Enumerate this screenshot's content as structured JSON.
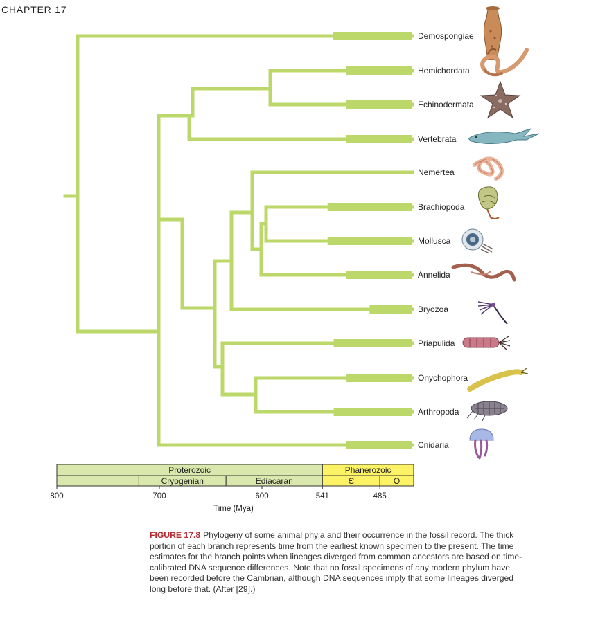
{
  "header": {
    "chapter": "CHAPTER  17"
  },
  "taxa": [
    {
      "id": "demospongiae",
      "label": "Demospongiae",
      "fossil_from_mya": 531,
      "icon": "sponge-icon"
    },
    {
      "id": "hemichordata",
      "label": "Hemichordata",
      "fossil_from_mya": 518,
      "icon": "acorn-worm-icon"
    },
    {
      "id": "echinodermata",
      "label": "Echinodermata",
      "fossil_from_mya": 518,
      "icon": "starfish-icon"
    },
    {
      "id": "vertebrata",
      "label": "Vertebrata",
      "fossil_from_mya": 518,
      "icon": "fish-icon"
    },
    {
      "id": "nemertea",
      "label": "Nemertea",
      "fossil_from_mya": null,
      "icon": "ribbon-worm-icon"
    },
    {
      "id": "brachiopoda",
      "label": "Brachiopoda",
      "fossil_from_mya": 536,
      "icon": "brachiopod-icon"
    },
    {
      "id": "mollusca",
      "label": "Mollusca",
      "fossil_from_mya": 536,
      "icon": "nautilus-icon"
    },
    {
      "id": "annelida",
      "label": "Annelida",
      "fossil_from_mya": 518,
      "icon": "earthworm-icon"
    },
    {
      "id": "bryozoa",
      "label": "Bryozoa",
      "fossil_from_mya": 495,
      "icon": "bryozoan-icon"
    },
    {
      "id": "priapulida",
      "label": "Priapulida",
      "fossil_from_mya": 530,
      "icon": "priapulid-icon"
    },
    {
      "id": "onychophora",
      "label": "Onychophora",
      "fossil_from_mya": 518,
      "icon": "velvet-worm-icon"
    },
    {
      "id": "arthropoda",
      "label": "Arthropoda",
      "fossil_from_mya": 530,
      "icon": "trilobite-icon"
    },
    {
      "id": "cnidaria",
      "label": "Cnidaria",
      "fossil_from_mya": 518,
      "icon": "jellyfish-icon"
    }
  ],
  "timescale": {
    "eons": [
      {
        "label": "Proterozoic",
        "from_mya": 800,
        "to_mya": 541
      },
      {
        "label": "Phanerozoic",
        "from_mya": 541,
        "to_mya": 445
      }
    ],
    "periods": [
      {
        "label": "",
        "from_mya": 800,
        "to_mya": 720
      },
      {
        "label": "Cryogenian",
        "from_mya": 720,
        "to_mya": 635
      },
      {
        "label": "Ediacaran",
        "from_mya": 635,
        "to_mya": 541
      },
      {
        "label": "Є",
        "from_mya": 541,
        "to_mya": 485
      },
      {
        "label": "O",
        "from_mya": 485,
        "to_mya": 445
      }
    ],
    "ticks": [
      "800",
      "700",
      "600",
      "541",
      "485"
    ],
    "axis_label": "Time (Mya)"
  },
  "colors": {
    "branch": "#bcd86a",
    "proterozoic": "#dbe8ad",
    "phanerozoic": "#fbf266"
  },
  "caption": {
    "label": "FIGURE 17.8",
    "text": "Phylogeny of some animal phyla and their occurrence in the fossil record. The thick portion of each branch represents time from the earliest known specimen to the present. The time estimates for the branch points when lineages diverged from common ancestors are based on time-calibrated DNA sequence differences. Note that no fossil specimens of any modern phylum have been recorded before the Cambrian, although DNA sequences imply that some lineages diverged long before that. (After [29].)"
  }
}
